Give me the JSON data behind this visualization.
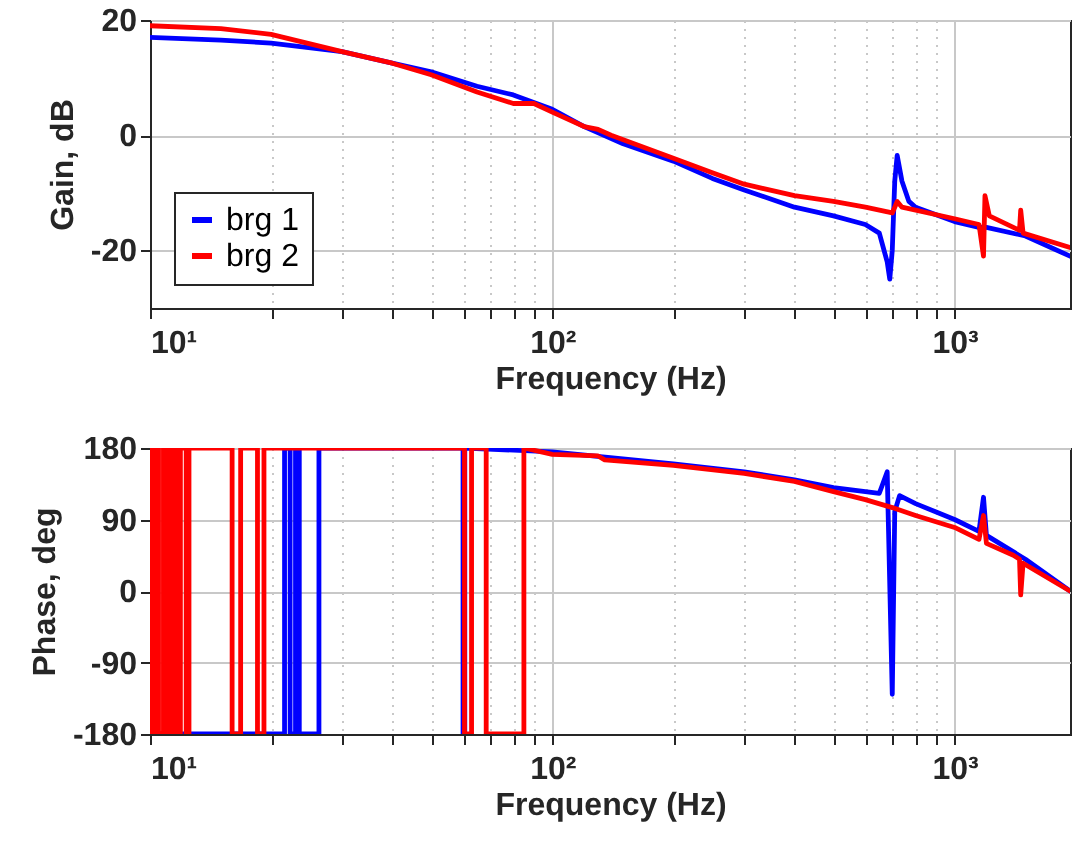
{
  "chart_data": [
    {
      "type": "line",
      "ylabel": "Gain, dB",
      "xlabel": "Frequency (Hz)",
      "log": "x",
      "grid": true,
      "legend": "bottom left",
      "line_style": "solid",
      "xlim": [
        10,
        1936
      ],
      "ylim": [
        -30,
        20
      ],
      "yticks": [
        -20,
        0,
        20
      ],
      "xticks": [
        {
          "value": 10,
          "label": "10¹"
        },
        {
          "value": 20,
          "label": null
        },
        {
          "value": 30,
          "label": null
        },
        {
          "value": 40,
          "label": null
        },
        {
          "value": 50,
          "label": null
        },
        {
          "value": 60,
          "label": null
        },
        {
          "value": 70,
          "label": null
        },
        {
          "value": 80,
          "label": null
        },
        {
          "value": 90,
          "label": null
        },
        {
          "value": 100,
          "label": "10²"
        },
        {
          "value": 200,
          "label": null
        },
        {
          "value": 300,
          "label": null
        },
        {
          "value": 400,
          "label": null
        },
        {
          "value": 500,
          "label": null
        },
        {
          "value": 600,
          "label": null
        },
        {
          "value": 700,
          "label": null
        },
        {
          "value": 800,
          "label": null
        },
        {
          "value": 900,
          "label": null
        },
        {
          "value": 1000,
          "label": "10³"
        }
      ],
      "series": [
        {
          "name": "brg 1",
          "color": "#0000ff",
          "x": [
            10,
            15,
            20,
            30,
            40,
            50,
            65,
            80,
            100,
            120,
            150,
            200,
            250,
            300,
            400,
            500,
            600,
            650,
            680,
            690,
            700,
            710,
            720,
            740,
            770,
            800,
            1000,
            1150,
            1200,
            1500,
            1936
          ],
          "values": [
            17,
            16.5,
            16,
            14.5,
            12.5,
            11,
            8.5,
            7,
            4.5,
            1.5,
            -1.5,
            -4.5,
            -7.5,
            -9.5,
            -12.5,
            -14,
            -15.5,
            -17,
            -22,
            -25,
            -20,
            -8,
            -3.5,
            -8,
            -11.5,
            -12.5,
            -15,
            -16,
            -16,
            -17.5,
            -21
          ]
        },
        {
          "name": "brg 2",
          "color": "#ff0000",
          "x": [
            10,
            15,
            20,
            30,
            40,
            50,
            65,
            80,
            90,
            100,
            120,
            130,
            140,
            200,
            250,
            300,
            400,
            500,
            600,
            700,
            720,
            740,
            1000,
            1150,
            1180,
            1190,
            1220,
            1400,
            1450,
            1460,
            1480,
            1936
          ],
          "values": [
            19,
            18.5,
            17.5,
            14.5,
            12.5,
            10.5,
            7.5,
            5.5,
            5.5,
            4,
            1.5,
            1,
            0,
            -4,
            -6.5,
            -8.5,
            -10.5,
            -11.5,
            -12.5,
            -13.5,
            -11.5,
            -12.5,
            -14.5,
            -15.5,
            -21,
            -10.5,
            -14,
            -16,
            -16.5,
            -13,
            -17,
            -19.5
          ]
        }
      ]
    },
    {
      "type": "line",
      "ylabel": "Phase, deg",
      "xlabel": "Frequency (Hz)",
      "log": "x",
      "grid": true,
      "line_style": "solid",
      "xlim": [
        10,
        1936
      ],
      "ylim": [
        -180,
        180
      ],
      "yticks": [
        -180,
        -90,
        0,
        90,
        180
      ],
      "xticks": [
        {
          "value": 10,
          "label": "10¹"
        },
        {
          "value": 20,
          "label": null
        },
        {
          "value": 30,
          "label": null
        },
        {
          "value": 40,
          "label": null
        },
        {
          "value": 50,
          "label": null
        },
        {
          "value": 60,
          "label": null
        },
        {
          "value": 70,
          "label": null
        },
        {
          "value": 80,
          "label": null
        },
        {
          "value": 90,
          "label": null
        },
        {
          "value": 100,
          "label": "10²"
        },
        {
          "value": 200,
          "label": null
        },
        {
          "value": 300,
          "label": null
        },
        {
          "value": 400,
          "label": null
        },
        {
          "value": 500,
          "label": null
        },
        {
          "value": 600,
          "label": null
        },
        {
          "value": 700,
          "label": null
        },
        {
          "value": 800,
          "label": null
        },
        {
          "value": 900,
          "label": null
        },
        {
          "value": 1000,
          "label": "10³"
        }
      ],
      "series": [
        {
          "color": "#0000ff",
          "x": [
            10,
            21.6,
            21.6,
            22.3,
            22.3,
            23,
            23,
            23.5,
            23.5,
            26.3,
            26.3,
            60,
            60,
            60.6,
            60.6,
            100,
            200,
            300,
            400,
            500,
            650,
            680,
            700,
            710,
            730,
            800,
            1000,
            1150,
            1180,
            1200,
            1500,
            1936
          ],
          "values": [
            -180,
            -180,
            180,
            180,
            -180,
            -180,
            180,
            180,
            -180,
            -180,
            180,
            180,
            -180,
            -180,
            180,
            175,
            160,
            150,
            140,
            130,
            123,
            150,
            -130,
            100,
            120,
            110,
            90,
            75,
            118,
            70,
            40,
            0
          ]
        },
        {
          "color": "#ff0000",
          "x": [
            10,
            10.1,
            10.1,
            10.3,
            10.3,
            10.5,
            10.5,
            10.8,
            10.8,
            11,
            11,
            11.3,
            11.3,
            11.6,
            11.6,
            11.9,
            11.9,
            12.3,
            12.3,
            12.5,
            12.5,
            16,
            16,
            16.8,
            16.8,
            18.5,
            18.5,
            19.2,
            19.2,
            60.5,
            60.5,
            63,
            63,
            68.5,
            68.5,
            85,
            85,
            100,
            130,
            135,
            200,
            300,
            400,
            500,
            600,
            700,
            800,
            1000,
            1150,
            1180,
            1200,
            1400,
            1450,
            1460,
            1480,
            1936
          ],
          "values": [
            180,
            180,
            -180,
            -180,
            180,
            180,
            -180,
            -180,
            180,
            180,
            -180,
            -180,
            180,
            180,
            -180,
            -180,
            180,
            180,
            -180,
            -180,
            180,
            180,
            -180,
            -180,
            180,
            180,
            -180,
            -180,
            180,
            180,
            -180,
            -180,
            180,
            180,
            -180,
            -180,
            180,
            172,
            170,
            165,
            158,
            148,
            138,
            125,
            115,
            105,
            95,
            80,
            65,
            95,
            60,
            45,
            40,
            -5,
            35,
            0
          ]
        }
      ]
    }
  ]
}
